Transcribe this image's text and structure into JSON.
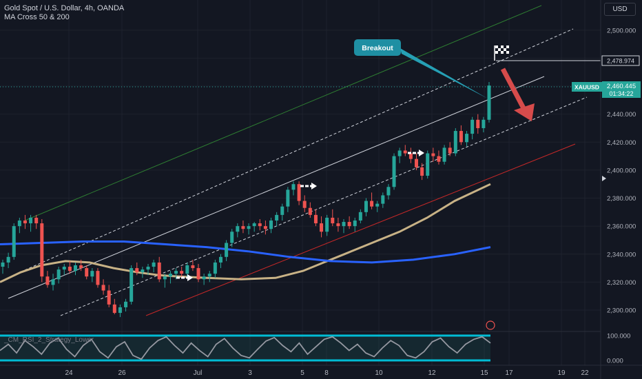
{
  "legend": {
    "symbol_line": "Gold Spot / U.S. Dollar, 4h, OANDA",
    "indicator": "MA Cross 50 & 200"
  },
  "toolbar": {
    "currency": "USD"
  },
  "rsi_panel": {
    "label": "_CM_RSI_2_Strategy_Lower"
  },
  "chart_data": [
    {
      "type": "candlestick",
      "title": "Gold Spot / U.S. Dollar, 4h, OANDA",
      "y_ticks": [
        "2,500.000",
        "2,480.000",
        "2,460.000",
        "2,440.000",
        "2,420.000",
        "2,400.000",
        "2,380.000",
        "2,360.000",
        "2,340.000",
        "2,320.000",
        "2,300.000"
      ],
      "ylim": [
        2292,
        2517
      ],
      "x_ticks": [
        "24",
        "26",
        "Jul",
        "3",
        "5",
        "8",
        "10",
        "12",
        "15",
        "17",
        "19",
        "22"
      ],
      "candles": [
        [
          2331,
          2336,
          2326,
          2334
        ],
        [
          2334,
          2341,
          2330,
          2338
        ],
        [
          2338,
          2362,
          2336,
          2360
        ],
        [
          2360,
          2366,
          2355,
          2364
        ],
        [
          2364,
          2368,
          2358,
          2362
        ],
        [
          2362,
          2368,
          2356,
          2366
        ],
        [
          2366,
          2368,
          2358,
          2362
        ],
        [
          2362,
          2365,
          2320,
          2324
        ],
        [
          2324,
          2328,
          2316,
          2318
        ],
        [
          2318,
          2326,
          2314,
          2322
        ],
        [
          2322,
          2331,
          2319,
          2329
        ],
        [
          2329,
          2333,
          2325,
          2331
        ],
        [
          2331,
          2335,
          2326,
          2328
        ],
        [
          2328,
          2334,
          2325,
          2332
        ],
        [
          2332,
          2336,
          2328,
          2330
        ],
        [
          2330,
          2332,
          2322,
          2324
        ],
        [
          2324,
          2330,
          2320,
          2328
        ],
        [
          2328,
          2330,
          2316,
          2318
        ],
        [
          2318,
          2322,
          2311,
          2314
        ],
        [
          2314,
          2318,
          2302,
          2304
        ],
        [
          2304,
          2308,
          2297,
          2298
        ],
        [
          2298,
          2304,
          2295,
          2302
        ],
        [
          2302,
          2308,
          2299,
          2306
        ],
        [
          2306,
          2332,
          2304,
          2330
        ],
        [
          2330,
          2334,
          2325,
          2327
        ],
        [
          2327,
          2331,
          2323,
          2329
        ],
        [
          2329,
          2333,
          2325,
          2331
        ],
        [
          2331,
          2336,
          2327,
          2334
        ],
        [
          2334,
          2338,
          2320,
          2322
        ],
        [
          2322,
          2326,
          2316,
          2324
        ],
        [
          2324,
          2328,
          2319,
          2326
        ],
        [
          2326,
          2330,
          2322,
          2328
        ],
        [
          2328,
          2331,
          2323,
          2326
        ],
        [
          2326,
          2334,
          2323,
          2332
        ],
        [
          2332,
          2336,
          2328,
          2330
        ],
        [
          2330,
          2333,
          2320,
          2322
        ],
        [
          2322,
          2326,
          2318,
          2324
        ],
        [
          2324,
          2328,
          2320,
          2326
        ],
        [
          2326,
          2336,
          2323,
          2334
        ],
        [
          2334,
          2340,
          2330,
          2338
        ],
        [
          2338,
          2350,
          2335,
          2348
        ],
        [
          2348,
          2358,
          2345,
          2356
        ],
        [
          2356,
          2362,
          2352,
          2360
        ],
        [
          2360,
          2364,
          2355,
          2358
        ],
        [
          2358,
          2362,
          2354,
          2360
        ],
        [
          2360,
          2363,
          2356,
          2362
        ],
        [
          2362,
          2365,
          2357,
          2360
        ],
        [
          2360,
          2364,
          2354,
          2358
        ],
        [
          2358,
          2366,
          2355,
          2364
        ],
        [
          2364,
          2370,
          2360,
          2368
        ],
        [
          2368,
          2376,
          2364,
          2374
        ],
        [
          2374,
          2388,
          2370,
          2386
        ],
        [
          2386,
          2392,
          2382,
          2390
        ],
        [
          2390,
          2392,
          2375,
          2378
        ],
        [
          2378,
          2382,
          2370,
          2373
        ],
        [
          2373,
          2377,
          2366,
          2368
        ],
        [
          2368,
          2372,
          2360,
          2362
        ],
        [
          2362,
          2367,
          2352,
          2356
        ],
        [
          2356,
          2368,
          2353,
          2366
        ],
        [
          2366,
          2372,
          2360,
          2362
        ],
        [
          2362,
          2366,
          2356,
          2360
        ],
        [
          2360,
          2365,
          2355,
          2363
        ],
        [
          2363,
          2367,
          2358,
          2360
        ],
        [
          2360,
          2366,
          2356,
          2364
        ],
        [
          2364,
          2372,
          2362,
          2370
        ],
        [
          2370,
          2380,
          2367,
          2378
        ],
        [
          2378,
          2384,
          2372,
          2374
        ],
        [
          2374,
          2378,
          2370,
          2376
        ],
        [
          2376,
          2384,
          2373,
          2382
        ],
        [
          2382,
          2390,
          2379,
          2388
        ],
        [
          2388,
          2412,
          2386,
          2410
        ],
        [
          2410,
          2416,
          2405,
          2414
        ],
        [
          2414,
          2418,
          2410,
          2412
        ],
        [
          2412,
          2416,
          2405,
          2408
        ],
        [
          2408,
          2412,
          2400,
          2402
        ],
        [
          2402,
          2405,
          2393,
          2396
        ],
        [
          2396,
          2414,
          2394,
          2412
        ],
        [
          2412,
          2416,
          2406,
          2410
        ],
        [
          2410,
          2414,
          2404,
          2406
        ],
        [
          2406,
          2418,
          2404,
          2416
        ],
        [
          2416,
          2420,
          2410,
          2412
        ],
        [
          2412,
          2430,
          2410,
          2428
        ],
        [
          2428,
          2432,
          2418,
          2420
        ],
        [
          2420,
          2428,
          2417,
          2426
        ],
        [
          2426,
          2438,
          2422,
          2436
        ],
        [
          2436,
          2440,
          2426,
          2430
        ],
        [
          2430,
          2438,
          2427,
          2436
        ],
        [
          2436,
          2463,
          2434,
          2460.445
        ]
      ],
      "moving_averages": [
        {
          "name": "MA 50",
          "color": "#c8b286",
          "x": [
            0,
            30,
            60,
            95,
            130,
            165,
            200,
            230,
            260,
            300,
            350,
            400,
            440,
            470,
            500,
            540,
            580,
            620,
            660,
            712
          ],
          "y": [
            2320,
            2327,
            2332,
            2335,
            2334,
            2330,
            2327,
            2325,
            2324,
            2323,
            2322,
            2323,
            2328,
            2334,
            2340,
            2348,
            2356,
            2366,
            2378,
            2390
          ]
        },
        {
          "name": "MA 200",
          "color": "#2962ff",
          "x": [
            0,
            60,
            120,
            180,
            240,
            300,
            360,
            420,
            480,
            540,
            600,
            660,
            712
          ],
          "y": [
            2347,
            2348,
            2349,
            2349,
            2347,
            2345,
            2342,
            2338,
            2335,
            2334,
            2336,
            2340,
            2345
          ]
        }
      ],
      "current_price": {
        "label": "XAUUSD",
        "price": "2,460.445",
        "countdown": "01:34:22",
        "color": "#26a69a"
      },
      "target_label": "2,478.974",
      "annotation": "Breakout"
    },
    {
      "type": "line",
      "title": "_CM_RSI_2_Strategy_Lower",
      "y_ticks": [
        "100.000",
        "0.000"
      ],
      "ylim": [
        0,
        100
      ],
      "values": [
        40,
        65,
        30,
        80,
        55,
        25,
        70,
        90,
        45,
        15,
        60,
        85,
        35,
        10,
        55,
        75,
        20,
        5,
        50,
        80,
        95,
        60,
        30,
        70,
        40,
        15,
        65,
        88,
        50,
        20,
        10,
        45,
        78,
        92,
        60,
        35,
        70,
        25,
        55,
        85,
        95,
        70,
        40,
        65,
        30,
        15,
        50,
        80,
        60,
        20,
        10,
        35,
        75,
        90,
        55,
        30,
        65,
        85,
        95,
        70
      ]
    }
  ]
}
